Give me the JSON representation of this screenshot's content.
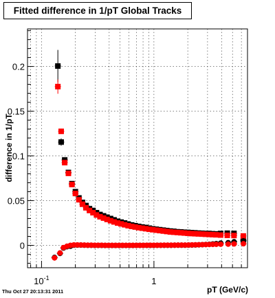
{
  "title": "Fitted difference in 1/pT  Global Tracks",
  "timestamp": "Thu Oct 27 20:13:31 2011",
  "chart_data": {
    "type": "scatter",
    "title": "Fitted difference in 1/pT  Global Tracks",
    "xlabel": "pT (GeV/c)",
    "ylabel": "difference in 1/pT",
    "x_scale": "log",
    "xlim": [
      0.075,
      6.8
    ],
    "ylim": [
      -0.025,
      0.242
    ],
    "grid": true,
    "x_tick_labels": [
      {
        "value": 0.1,
        "label": "10",
        "exp": "-1"
      },
      {
        "value": 1,
        "label": "1",
        "exp": ""
      }
    ],
    "y_ticks": [
      0,
      0.05,
      0.1,
      0.15,
      0.2
    ],
    "y_tick_labels": [
      "0",
      "0.05",
      "0.1",
      "0.15",
      "0.2"
    ],
    "series": [
      {
        "marker": "square",
        "color": "#000000",
        "x": [
          0.1397,
          0.1495,
          0.1607,
          0.1734,
          0.1863,
          0.2001,
          0.2151,
          0.2312,
          0.2484,
          0.267,
          0.2869,
          0.3083,
          0.3313,
          0.356,
          0.3826,
          0.4112,
          0.4419,
          0.4748,
          0.5103,
          0.5484,
          0.5893,
          0.6333,
          0.6805,
          0.7313,
          0.7859,
          0.8446,
          0.9076,
          0.9753,
          1.048,
          1.126,
          1.21,
          1.301,
          1.398,
          1.502,
          1.614,
          1.735,
          1.864,
          2.003,
          2.153,
          2.313,
          2.486,
          2.671,
          2.871,
          3.085,
          3.315,
          3.562,
          3.92,
          4.493,
          5.154,
          6.24
        ],
        "y": [
          0.2005,
          0.1155,
          0.0955,
          0.0815,
          0.069,
          0.06,
          0.053,
          0.048,
          0.0445,
          0.041,
          0.039,
          0.0365,
          0.0345,
          0.033,
          0.0315,
          0.03,
          0.0285,
          0.027,
          0.026,
          0.025,
          0.0238,
          0.0228,
          0.022,
          0.0212,
          0.0205,
          0.02,
          0.0192,
          0.0185,
          0.018,
          0.0175,
          0.017,
          0.0165,
          0.016,
          0.0157,
          0.0152,
          0.015,
          0.0147,
          0.0145,
          0.0142,
          0.014,
          0.0137,
          0.0135,
          0.0133,
          0.0133,
          0.013,
          0.0128,
          0.0133,
          0.0136,
          0.0134,
          0.006
        ],
        "err": [
          0.018,
          0.004,
          0.002,
          0.002,
          0.0015,
          0.001,
          0.001,
          0.0008,
          0.0008,
          0.0008,
          0.0007,
          0.0007,
          0.0006,
          0.0006,
          0.0006,
          0.0006,
          0.0006,
          0.0006,
          0.0006,
          0.0006,
          0.0006,
          0.0006,
          0.0006,
          0.0006,
          0.0006,
          0.0006,
          0.0006,
          0.0006,
          0.0006,
          0.0006,
          0.0006,
          0.0006,
          0.0006,
          0.0006,
          0.0006,
          0.0006,
          0.0006,
          0.0007,
          0.0007,
          0.0007,
          0.0008,
          0.0008,
          0.0008,
          0.0009,
          0.001,
          0.001,
          0.001,
          0.0012,
          0.0015,
          0.002
        ]
      },
      {
        "marker": "square",
        "color": "#ff0000",
        "x": [
          0.1397,
          0.1495,
          0.1607,
          0.1734,
          0.1863,
          0.2001,
          0.2151,
          0.2312,
          0.2484,
          0.267,
          0.2869,
          0.3083,
          0.3313,
          0.356,
          0.3826,
          0.4112,
          0.4419,
          0.4748,
          0.5103,
          0.5484,
          0.5893,
          0.6333,
          0.6805,
          0.7313,
          0.7859,
          0.8446,
          0.9076,
          0.9753,
          1.048,
          1.126,
          1.21,
          1.301,
          1.398,
          1.502,
          1.614,
          1.735,
          1.864,
          2.003,
          2.153,
          2.313,
          2.486,
          2.671,
          2.871,
          3.085,
          3.315,
          3.562,
          3.92,
          4.493,
          5.154,
          6.24
        ],
        "y": [
          0.1775,
          0.1275,
          0.0925,
          0.0805,
          0.068,
          0.058,
          0.051,
          0.046,
          0.042,
          0.039,
          0.0365,
          0.034,
          0.032,
          0.0305,
          0.029,
          0.0275,
          0.0262,
          0.025,
          0.024,
          0.023,
          0.022,
          0.0212,
          0.0205,
          0.0198,
          0.0192,
          0.0186,
          0.018,
          0.0175,
          0.017,
          0.0165,
          0.016,
          0.0155,
          0.015,
          0.0147,
          0.0144,
          0.0141,
          0.0138,
          0.0135,
          0.0132,
          0.013,
          0.0128,
          0.0126,
          0.0124,
          0.0122,
          0.012,
          0.0118,
          0.0115,
          0.0112,
          0.011,
          0.0105
        ],
        "err": [
          0.008,
          0.003,
          0.002,
          0.0015,
          0.0012,
          0.001,
          0.0008,
          0.0008,
          0.0007,
          0.0007,
          0.0006,
          0.0006,
          0.0006,
          0.0006,
          0.0006,
          0.0006,
          0.0006,
          0.0006,
          0.0006,
          0.0006,
          0.0006,
          0.0006,
          0.0006,
          0.0006,
          0.0006,
          0.0006,
          0.0006,
          0.0006,
          0.0006,
          0.0006,
          0.0006,
          0.0006,
          0.0006,
          0.0006,
          0.0006,
          0.0006,
          0.0006,
          0.0006,
          0.0007,
          0.0007,
          0.0007,
          0.0008,
          0.0008,
          0.0008,
          0.0009,
          0.001,
          0.001,
          0.0012,
          0.0015,
          0.002
        ]
      },
      {
        "marker": "circle",
        "color": "#000000",
        "x": [
          0.1305,
          0.146,
          0.1568,
          0.1683,
          0.1807,
          0.194,
          0.2083,
          0.2237,
          0.2402,
          0.2579,
          0.2769,
          0.2973,
          0.3192,
          0.3427,
          0.368,
          0.3951,
          0.4243,
          0.4555,
          0.4891,
          0.5252,
          0.5639,
          0.6055,
          0.6501,
          0.6981,
          0.7496,
          0.8048,
          0.8642,
          0.9279,
          0.9963,
          1.07,
          1.149,
          1.234,
          1.324,
          1.422,
          1.527,
          1.64,
          1.761,
          1.891,
          2.03,
          2.18,
          2.341,
          2.513,
          2.699,
          2.898,
          3.111,
          3.341,
          3.587,
          3.929,
          4.578,
          5.166,
          6.256
        ],
        "y": [
          -0.0135,
          -0.009,
          -0.003,
          -0.0015,
          -0.001,
          0.0002,
          0.0003,
          0.0003,
          0.0002,
          0.0001,
          0.0001,
          0.0,
          0.0,
          0.0,
          -0.0001,
          -0.0001,
          -0.0001,
          -0.0001,
          -0.0001,
          -0.0001,
          -0.0001,
          -0.0001,
          -0.0001,
          0.0,
          0.0,
          0.0,
          0.0,
          0.0,
          0.0,
          0.0001,
          0.0001,
          0.0001,
          0.0001,
          0.0001,
          0.0002,
          0.0002,
          0.0002,
          0.0002,
          0.0003,
          0.0004,
          0.0005,
          0.0006,
          0.0008,
          0.001,
          0.0012,
          0.0015,
          0.0019,
          0.0025,
          0.003,
          0.004,
          0.005
        ],
        "err": [
          0.003,
          0.003,
          0.002,
          0.0015,
          0.0012,
          0.001,
          0.0008,
          0.0008,
          0.0007,
          0.0007,
          0.0006,
          0.0006,
          0.0006,
          0.0006,
          0.0006,
          0.0006,
          0.0006,
          0.0006,
          0.0006,
          0.0006,
          0.0006,
          0.0006,
          0.0006,
          0.0006,
          0.0006,
          0.0006,
          0.0006,
          0.0006,
          0.0006,
          0.0006,
          0.0006,
          0.0006,
          0.0006,
          0.0006,
          0.0006,
          0.0007,
          0.0007,
          0.0007,
          0.0007,
          0.0008,
          0.0008,
          0.0008,
          0.0009,
          0.0009,
          0.001,
          0.001,
          0.0012,
          0.0014,
          0.0016,
          0.002,
          0.002
        ]
      },
      {
        "marker": "circle",
        "color": "#ff0000",
        "x": [
          0.1305,
          0.146,
          0.1568,
          0.1683,
          0.1807,
          0.194,
          0.2083,
          0.2237,
          0.2402,
          0.2579,
          0.2769,
          0.2973,
          0.3192,
          0.3427,
          0.368,
          0.3951,
          0.4243,
          0.4555,
          0.4891,
          0.5252,
          0.5639,
          0.6055,
          0.6501,
          0.6981,
          0.7496,
          0.8048,
          0.8642,
          0.9279,
          0.9963,
          1.07,
          1.149,
          1.234,
          1.324,
          1.422,
          1.527,
          1.64,
          1.761,
          1.891,
          2.03,
          2.18,
          2.341,
          2.513,
          2.699,
          2.898,
          3.111,
          3.341,
          3.587,
          3.929,
          4.578,
          5.166,
          6.256
        ],
        "y": [
          -0.014,
          -0.0085,
          -0.0025,
          -0.001,
          0.0,
          0.0005,
          0.0005,
          0.0004,
          0.0003,
          0.0002,
          0.0002,
          0.0001,
          0.0001,
          0.0001,
          0.0,
          0.0,
          0.0,
          0.0,
          0.0,
          0.0,
          0.0,
          0.0,
          0.0,
          0.0,
          0.0,
          0.0,
          0.0001,
          0.0001,
          0.0001,
          0.0001,
          0.0001,
          0.0002,
          0.0002,
          0.0002,
          0.0002,
          0.0003,
          0.0003,
          0.0003,
          0.0004,
          0.0005,
          0.0006,
          0.0007,
          0.0008,
          0.0009,
          0.001,
          0.0011,
          0.0012,
          0.0013,
          0.0014,
          0.0016,
          0.0018
        ],
        "err": [
          0.003,
          0.003,
          0.002,
          0.0015,
          0.0012,
          0.001,
          0.0008,
          0.0008,
          0.0007,
          0.0007,
          0.0006,
          0.0006,
          0.0006,
          0.0006,
          0.0006,
          0.0006,
          0.0006,
          0.0006,
          0.0006,
          0.0006,
          0.0006,
          0.0006,
          0.0006,
          0.0006,
          0.0006,
          0.0006,
          0.0006,
          0.0006,
          0.0006,
          0.0006,
          0.0006,
          0.0006,
          0.0006,
          0.0006,
          0.0006,
          0.0007,
          0.0007,
          0.0007,
          0.0007,
          0.0008,
          0.0008,
          0.0008,
          0.0009,
          0.0009,
          0.001,
          0.001,
          0.0012,
          0.0014,
          0.0016,
          0.002,
          0.002
        ]
      }
    ]
  }
}
